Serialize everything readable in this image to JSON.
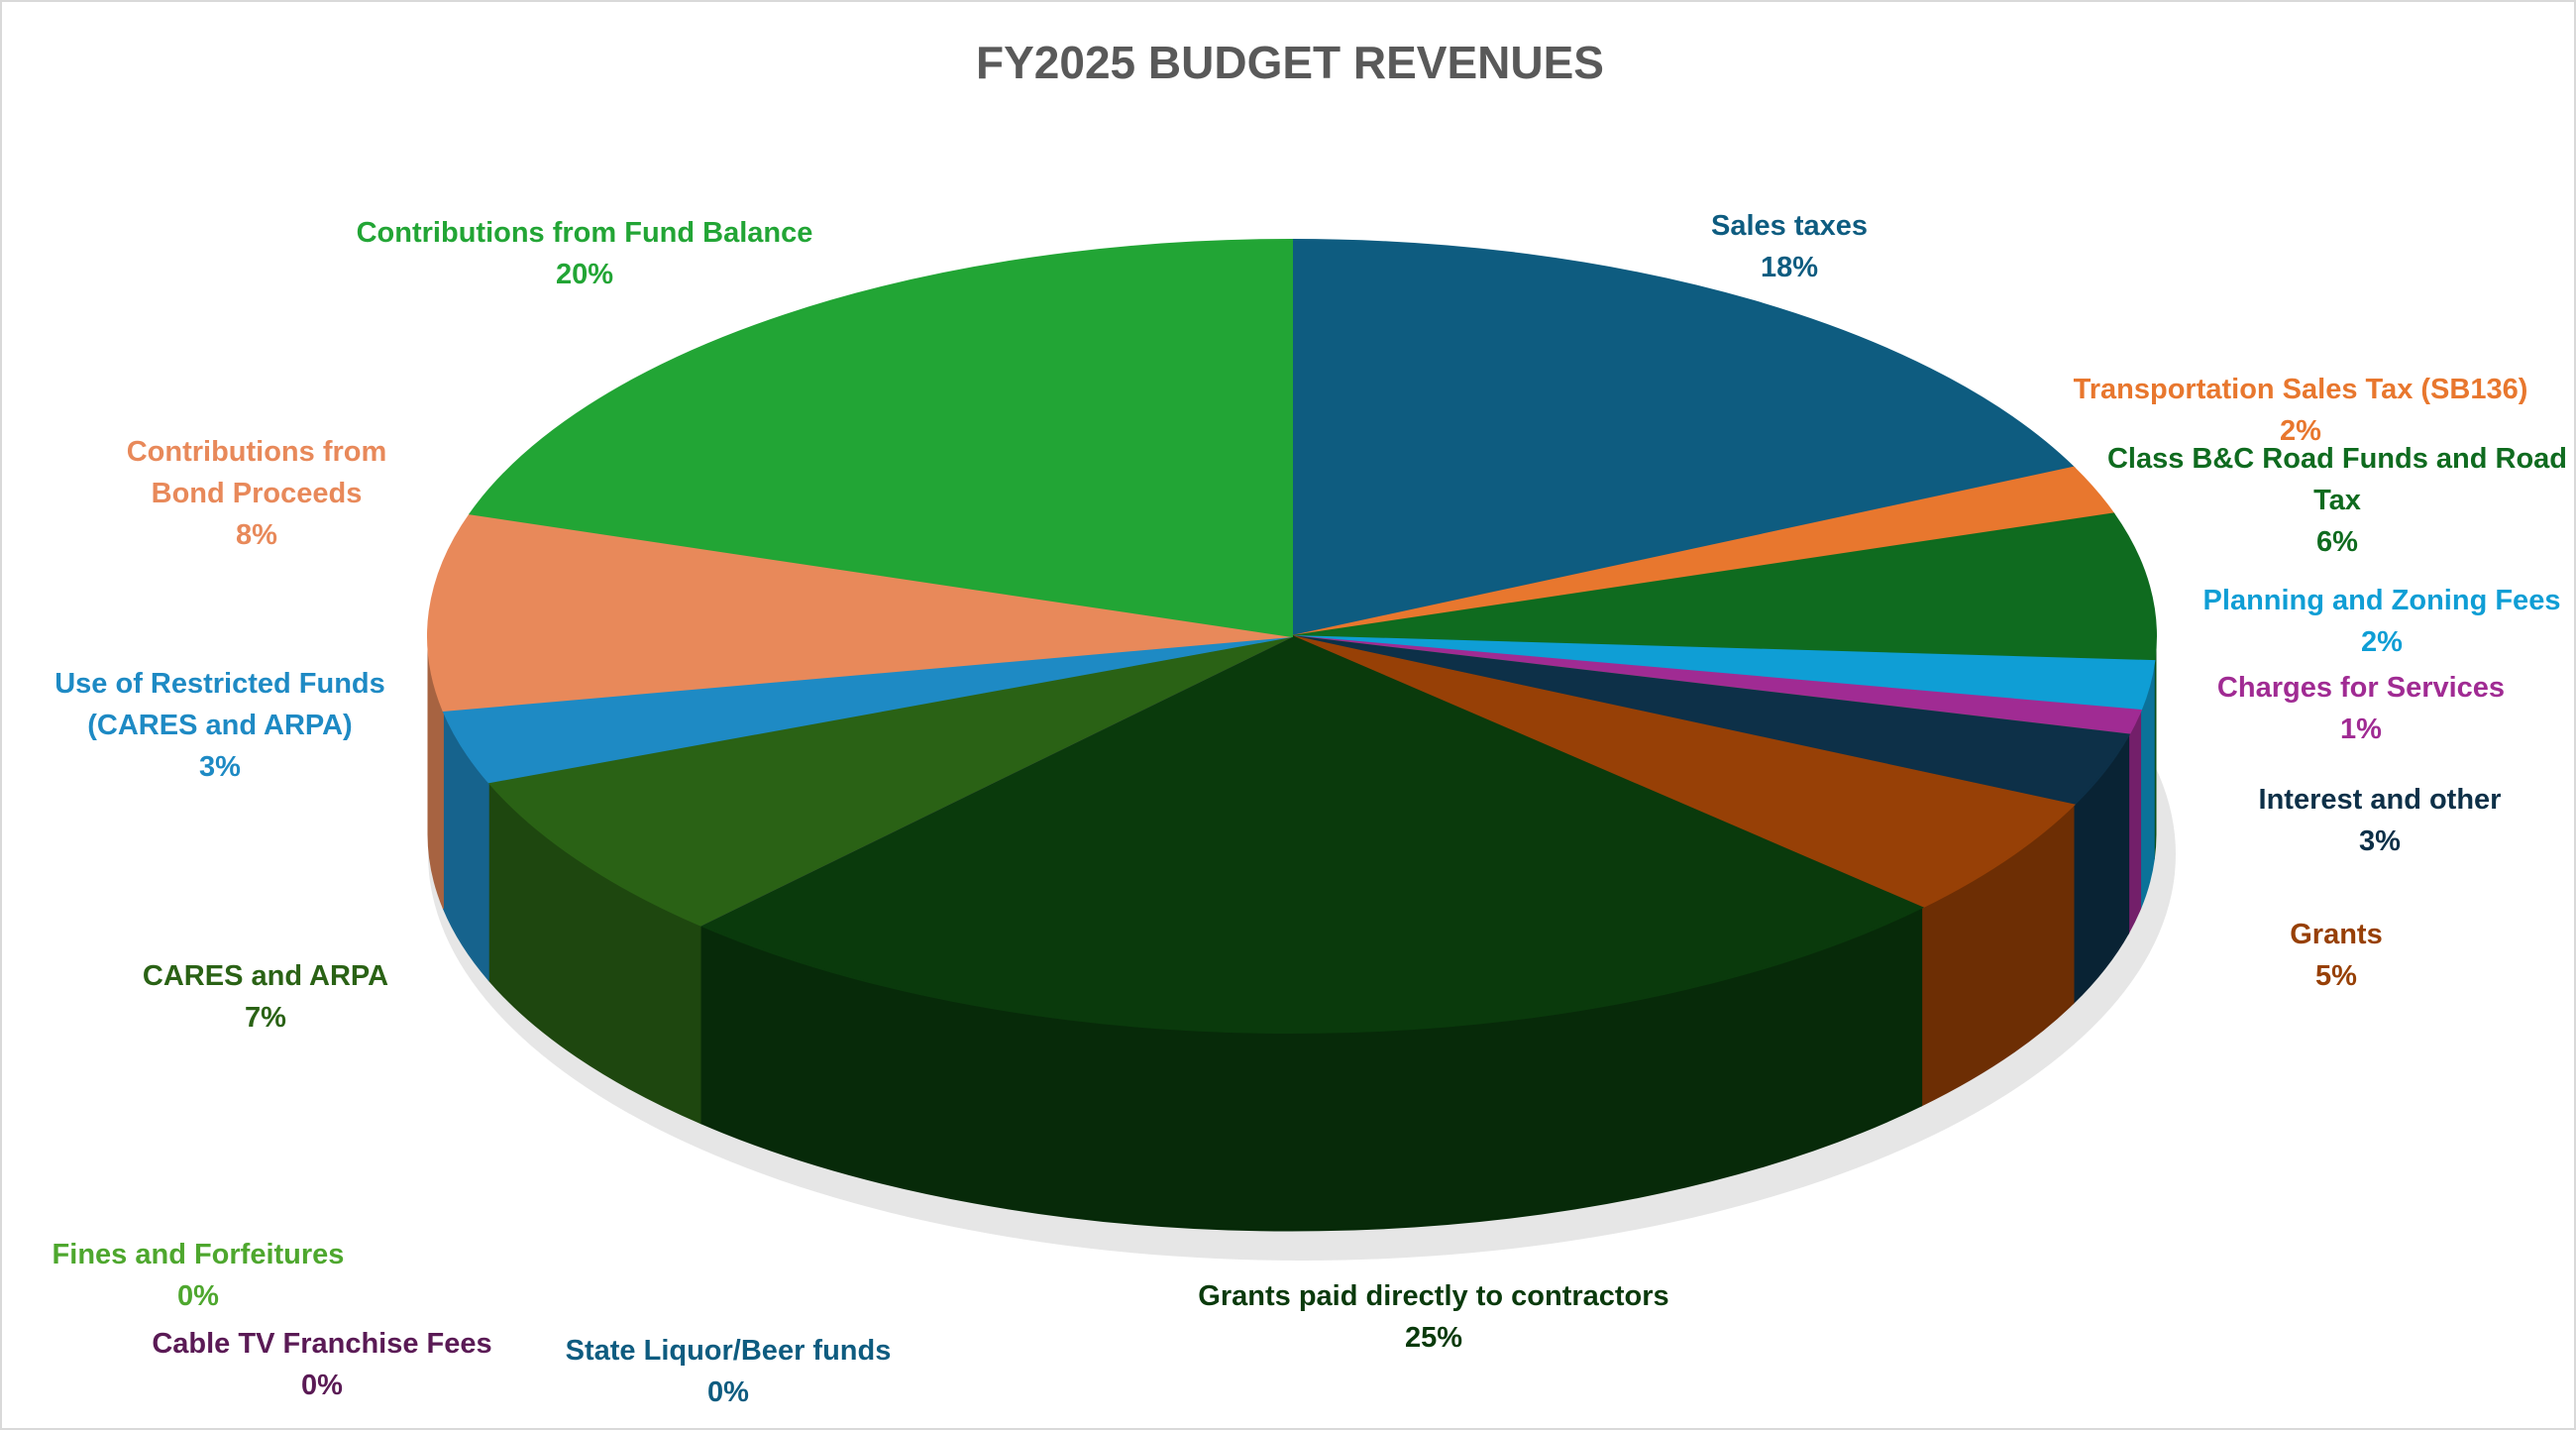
{
  "chart_data": {
    "type": "pie",
    "title": "FY2025 BUDGET REVENUES",
    "categories": [
      "Sales taxes",
      "Transportation Sales Tax (SB136)",
      "Class B&C Road Funds and Road Tax",
      "Planning and Zoning Fees",
      "Charges for Services",
      "Fines and Forfeitures",
      "Interest and other",
      "Grants",
      "Grants paid directly to contractors",
      "State Liquor/Beer funds",
      "Cable TV Franchise Fees",
      "CARES and ARPA",
      "Use of Restricted Funds (CARES and ARPA)",
      "Contributions from Bond Proceeds",
      "Contributions from Fund Balance"
    ],
    "values": [
      18,
      2,
      6,
      2,
      1,
      0,
      3,
      5,
      25,
      0,
      0,
      7,
      3,
      8,
      20
    ],
    "value_labels": [
      "18%",
      "2%",
      "6%",
      "2%",
      "1%",
      "0%",
      "3%",
      "5%",
      "25%",
      "0%",
      "0%",
      "7%",
      "3%",
      "8%",
      "20%"
    ],
    "colors": [
      "#0e5c80",
      "#e8772e",
      "#0f6b1f",
      "#0f9ed5",
      "#a02b93",
      "#4ea72e",
      "#0d3048",
      "#974006",
      "#0a3a0c",
      "#0e5c80",
      "#5a1a55",
      "#2a6215",
      "#1e8ac4",
      "#e8895a",
      "#22a535"
    ]
  }
}
